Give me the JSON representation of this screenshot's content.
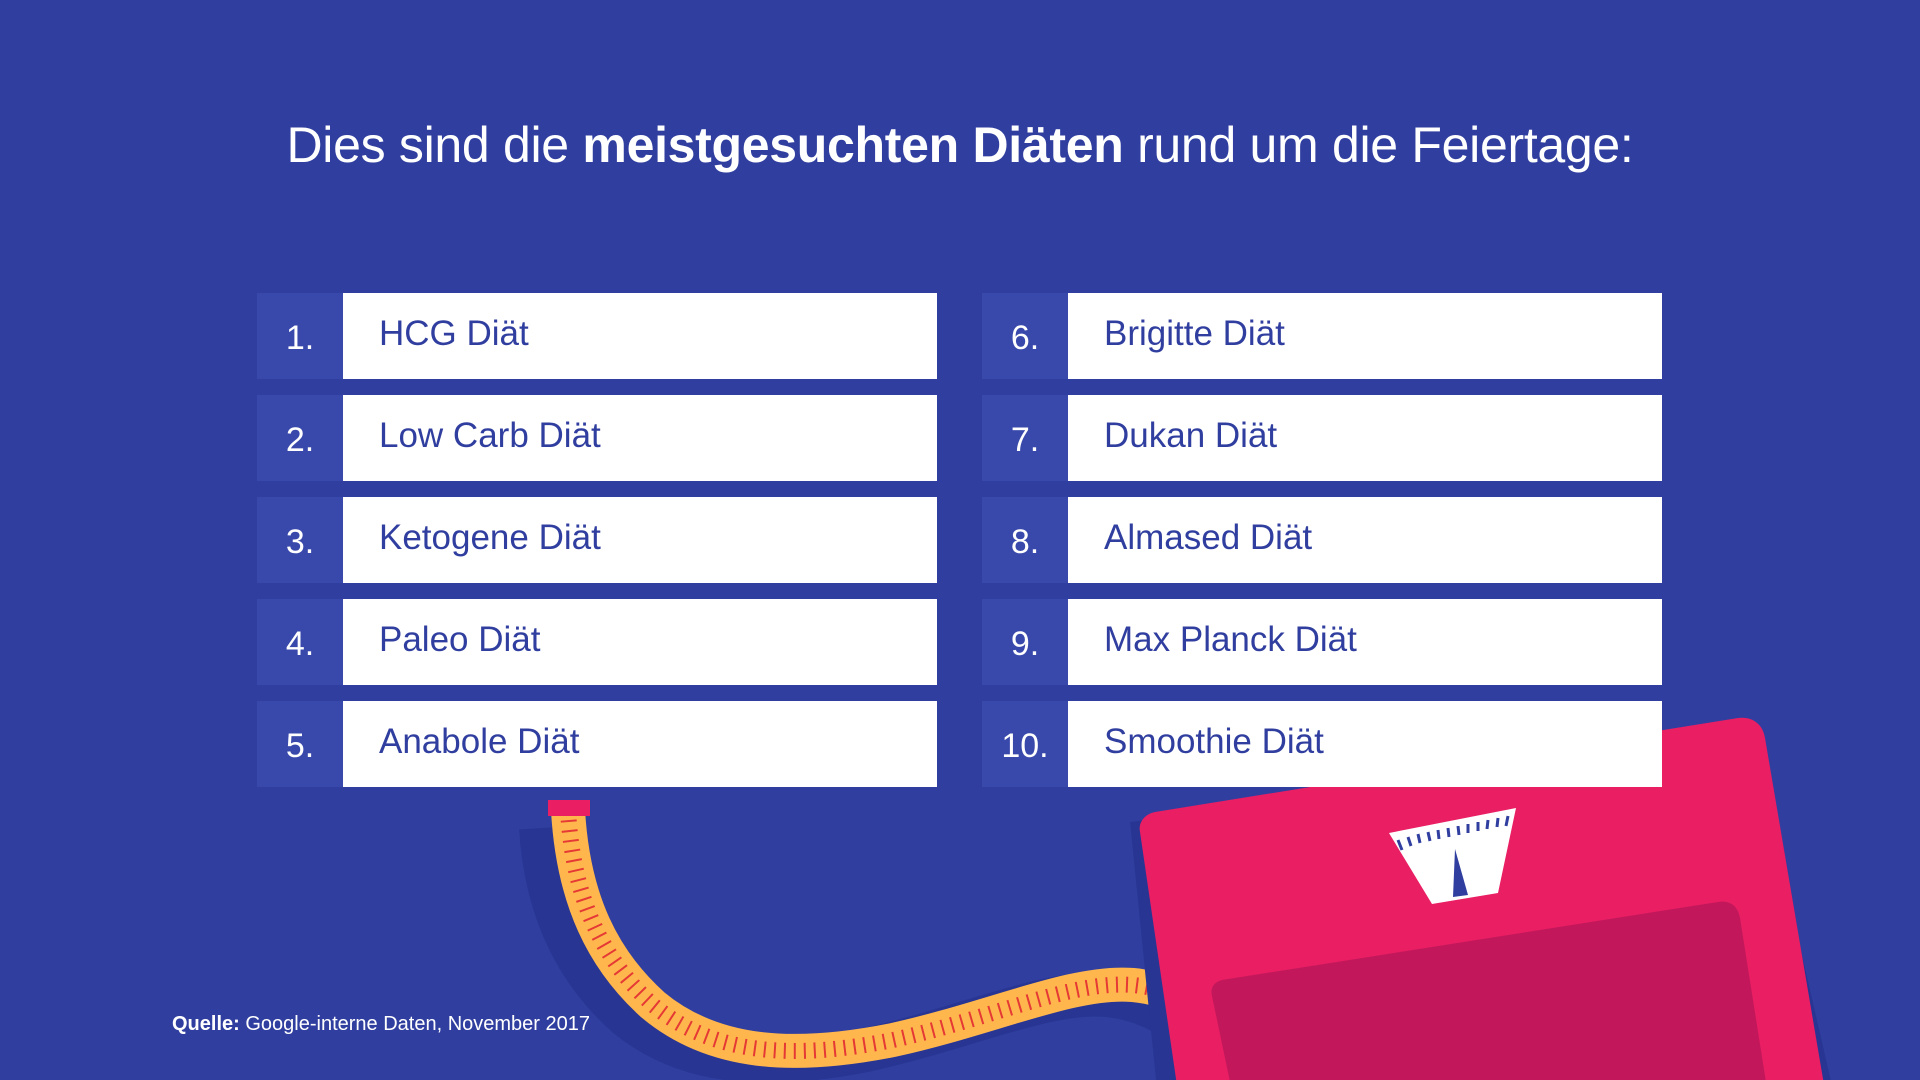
{
  "headline": {
    "prefix": "Dies sind die ",
    "bold": "meistgesuchten Diäten",
    "suffix": " rund um die Feiertage:"
  },
  "diets_left": [
    {
      "rank": "1.",
      "name": "HCG Diät"
    },
    {
      "rank": "2.",
      "name": "Low Carb Diät"
    },
    {
      "rank": "3.",
      "name": "Ketogene Diät"
    },
    {
      "rank": "4.",
      "name": "Paleo Diät"
    },
    {
      "rank": "5.",
      "name": "Anabole Diät"
    }
  ],
  "diets_right": [
    {
      "rank": "6.",
      "name": "Brigitte Diät"
    },
    {
      "rank": "7.",
      "name": "Dukan Diät"
    },
    {
      "rank": "8.",
      "name": "Almased Diät"
    },
    {
      "rank": "9.",
      "name": "Max Planck Diät"
    },
    {
      "rank": "10.",
      "name": "Smoothie Diät"
    }
  ],
  "source": {
    "label": "Quelle:",
    "text": " Google-interne Daten, November 2017"
  },
  "colors": {
    "background": "#303f9f",
    "number_box": "#3949ab",
    "label_box": "#ffffff",
    "label_text": "#303f9f",
    "scale": "#e91e63",
    "scale_top": "#c2185b",
    "tape": "#ffb74d",
    "tape_marks": "#e53935"
  },
  "icons": [
    "measuring-tape-icon",
    "bathroom-scale-icon"
  ]
}
